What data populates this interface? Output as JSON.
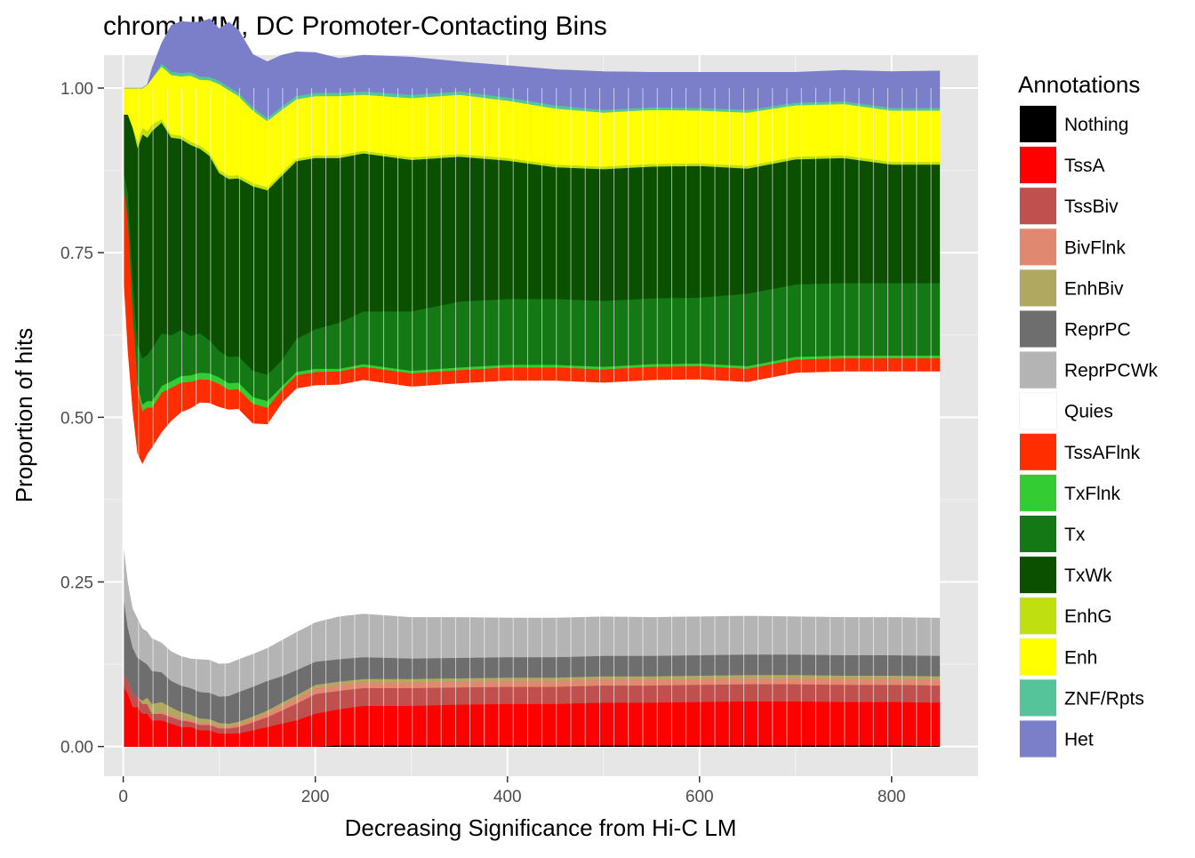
{
  "chart_data": {
    "type": "area",
    "title": "chromHMM, DC Promoter-Contacting Bins",
    "xlabel": "Decreasing Significance from Hi-C LM",
    "ylabel": "Proportion of hits",
    "xlim": [
      -20,
      890
    ],
    "ylim": [
      -0.045,
      1.05
    ],
    "x_ticks": [
      0,
      200,
      400,
      600,
      800
    ],
    "x_tick_labels": [
      "0",
      "200",
      "400",
      "600",
      "800"
    ],
    "y_ticks": [
      0,
      0.25,
      0.5,
      0.75,
      1.0
    ],
    "y_tick_labels": [
      "0.00",
      "0.25",
      "0.50",
      "0.75",
      "1.00"
    ],
    "grid": true,
    "stacking": "cumulative proportions, stacked bottom-up in series order",
    "legend": {
      "title": "Annotations",
      "placement": "right"
    },
    "x": [
      1,
      5,
      10,
      15,
      20,
      25,
      30,
      40,
      50,
      60,
      70,
      80,
      90,
      100,
      110,
      120,
      135,
      150,
      165,
      180,
      200,
      225,
      250,
      300,
      350,
      400,
      450,
      500,
      550,
      600,
      650,
      700,
      750,
      800,
      850
    ],
    "series": [
      {
        "name": "Nothing",
        "color": "#000000",
        "values": [
          0,
          0,
          0,
          0,
          0,
          0,
          0,
          0,
          0,
          0,
          0,
          0,
          0,
          0,
          0,
          0,
          0,
          0,
          0,
          0,
          0,
          0.002,
          0.002,
          0.002,
          0.002,
          0.002,
          0.002,
          0.002,
          0.002,
          0.002,
          0.002,
          0.002,
          0.002,
          0.002,
          0.001
        ]
      },
      {
        "name": "TssA",
        "color": "#FF0000",
        "values": [
          0.09,
          0.08,
          0.06,
          0.06,
          0.05,
          0.05,
          0.04,
          0.04,
          0.035,
          0.03,
          0.03,
          0.025,
          0.025,
          0.02,
          0.02,
          0.02,
          0.025,
          0.03,
          0.035,
          0.04,
          0.05,
          0.055,
          0.06,
          0.06,
          0.062,
          0.063,
          0.063,
          0.065,
          0.065,
          0.066,
          0.067,
          0.067,
          0.066,
          0.066,
          0.066
        ]
      },
      {
        "name": "TssBiv",
        "color": "#C0504D",
        "values": [
          0.02,
          0.02,
          0.02,
          0.015,
          0.015,
          0.015,
          0.01,
          0.01,
          0.01,
          0.01,
          0.008,
          0.008,
          0.008,
          0.008,
          0.008,
          0.01,
          0.012,
          0.015,
          0.02,
          0.025,
          0.03,
          0.028,
          0.027,
          0.027,
          0.026,
          0.026,
          0.026,
          0.026,
          0.026,
          0.026,
          0.026,
          0.026,
          0.026,
          0.026,
          0.026
        ]
      },
      {
        "name": "BivFlnk",
        "color": "#E08870",
        "values": [
          0,
          0,
          0,
          0,
          0,
          0,
          0,
          0.003,
          0.003,
          0.003,
          0.003,
          0.003,
          0.003,
          0.003,
          0.003,
          0.004,
          0.005,
          0.006,
          0.007,
          0.008,
          0.009,
          0.009,
          0.009,
          0.009,
          0.009,
          0.009,
          0.009,
          0.009,
          0.009,
          0.009,
          0.009,
          0.009,
          0.009,
          0.009,
          0.009
        ]
      },
      {
        "name": "EnhBiv",
        "color": "#B0A860",
        "values": [
          0,
          0,
          0,
          0,
          0.005,
          0.01,
          0.015,
          0.015,
          0.012,
          0.01,
          0.008,
          0.007,
          0.006,
          0.005,
          0.004,
          0.004,
          0.004,
          0.004,
          0.005,
          0.005,
          0.005,
          0.005,
          0.005,
          0.005,
          0.005,
          0.005,
          0.005,
          0.005,
          0.005,
          0.005,
          0.005,
          0.005,
          0.005,
          0.005,
          0.005
        ]
      },
      {
        "name": "ReprPC",
        "color": "#6E6E6E",
        "values": [
          0.11,
          0.08,
          0.07,
          0.06,
          0.06,
          0.05,
          0.05,
          0.045,
          0.04,
          0.04,
          0.04,
          0.04,
          0.04,
          0.04,
          0.042,
          0.045,
          0.045,
          0.045,
          0.04,
          0.038,
          0.035,
          0.034,
          0.033,
          0.031,
          0.031,
          0.031,
          0.031,
          0.031,
          0.031,
          0.031,
          0.031,
          0.031,
          0.031,
          0.031,
          0.031
        ]
      },
      {
        "name": "ReprPCWk",
        "color": "#B4B4B4",
        "values": [
          0.08,
          0.07,
          0.06,
          0.06,
          0.05,
          0.05,
          0.05,
          0.045,
          0.045,
          0.045,
          0.045,
          0.05,
          0.05,
          0.05,
          0.05,
          0.05,
          0.05,
          0.05,
          0.055,
          0.058,
          0.06,
          0.065,
          0.066,
          0.063,
          0.062,
          0.06,
          0.06,
          0.06,
          0.059,
          0.059,
          0.059,
          0.058,
          0.058,
          0.058,
          0.058
        ]
      },
      {
        "name": "Quies",
        "color": "#FFFFFF",
        "values": [
          0.4,
          0.35,
          0.3,
          0.25,
          0.25,
          0.27,
          0.29,
          0.32,
          0.35,
          0.37,
          0.38,
          0.39,
          0.39,
          0.39,
          0.385,
          0.38,
          0.35,
          0.34,
          0.36,
          0.37,
          0.36,
          0.352,
          0.355,
          0.35,
          0.355,
          0.36,
          0.36,
          0.355,
          0.36,
          0.36,
          0.355,
          0.37,
          0.373,
          0.373,
          0.374
        ]
      },
      {
        "name": "TssAFlnk",
        "color": "#FF2D00",
        "values": [
          0.15,
          0.2,
          0.15,
          0.1,
          0.08,
          0.07,
          0.06,
          0.06,
          0.05,
          0.045,
          0.04,
          0.035,
          0.035,
          0.035,
          0.03,
          0.03,
          0.03,
          0.025,
          0.02,
          0.02,
          0.02,
          0.02,
          0.02,
          0.02,
          0.02,
          0.02,
          0.02,
          0.02,
          0.02,
          0.02,
          0.02,
          0.02,
          0.02,
          0.02,
          0.02
        ]
      },
      {
        "name": "TxFlnk",
        "color": "#33CC33",
        "values": [
          0,
          0,
          0,
          0.005,
          0.01,
          0.01,
          0.01,
          0.01,
          0.01,
          0.01,
          0.01,
          0.01,
          0.01,
          0.01,
          0.01,
          0.01,
          0.01,
          0.01,
          0.005,
          0.005,
          0.005,
          0.004,
          0.004,
          0.004,
          0.004,
          0.004,
          0.004,
          0.004,
          0.004,
          0.004,
          0.004,
          0.004,
          0.004,
          0.004,
          0.004
        ]
      },
      {
        "name": "Tx",
        "color": "#147814",
        "values": [
          0.02,
          0.04,
          0.05,
          0.06,
          0.07,
          0.07,
          0.08,
          0.08,
          0.07,
          0.07,
          0.06,
          0.06,
          0.05,
          0.04,
          0.04,
          0.04,
          0.04,
          0.04,
          0.04,
          0.05,
          0.06,
          0.07,
          0.08,
          0.09,
          0.1,
          0.1,
          0.1,
          0.1,
          0.1,
          0.1,
          0.11,
          0.11,
          0.11,
          0.11,
          0.11
        ]
      },
      {
        "name": "TxWk",
        "color": "#0A5000",
        "values": [
          0.09,
          0.12,
          0.23,
          0.3,
          0.34,
          0.33,
          0.33,
          0.32,
          0.3,
          0.29,
          0.29,
          0.28,
          0.28,
          0.27,
          0.27,
          0.27,
          0.28,
          0.28,
          0.28,
          0.27,
          0.26,
          0.25,
          0.24,
          0.23,
          0.22,
          0.21,
          0.2,
          0.2,
          0.2,
          0.2,
          0.19,
          0.19,
          0.19,
          0.18,
          0.18
        ]
      },
      {
        "name": "EnhG",
        "color": "#BFDF10",
        "values": [
          0,
          0,
          0,
          0.01,
          0.01,
          0.01,
          0.01,
          0.005,
          0.005,
          0.005,
          0.005,
          0.005,
          0.005,
          0.005,
          0.005,
          0.005,
          0.005,
          0.005,
          0.005,
          0.004,
          0.004,
          0.004,
          0.004,
          0.004,
          0.004,
          0.004,
          0.004,
          0.004,
          0.004,
          0.004,
          0.004,
          0.004,
          0.004,
          0.004,
          0.004
        ]
      },
      {
        "name": "Enh",
        "color": "#FFFF00",
        "values": [
          0.04,
          0.04,
          0.06,
          0.08,
          0.06,
          0.07,
          0.07,
          0.08,
          0.09,
          0.09,
          0.1,
          0.1,
          0.11,
          0.13,
          0.13,
          0.12,
          0.11,
          0.1,
          0.095,
          0.09,
          0.09,
          0.09,
          0.085,
          0.09,
          0.09,
          0.087,
          0.085,
          0.082,
          0.082,
          0.08,
          0.081,
          0.078,
          0.078,
          0.078,
          0.078
        ]
      },
      {
        "name": "ZNF/Rpts",
        "color": "#55C49A",
        "values": [
          0,
          0,
          0,
          0,
          0,
          0,
          0,
          0.005,
          0.005,
          0.005,
          0.005,
          0.005,
          0.005,
          0.005,
          0.005,
          0.005,
          0.005,
          0.005,
          0.005,
          0.005,
          0.005,
          0.005,
          0.005,
          0.005,
          0.005,
          0.005,
          0.005,
          0.004,
          0.004,
          0.004,
          0.004,
          0.004,
          0.004,
          0.004,
          0.004
        ]
      },
      {
        "name": "Het",
        "color": "#7B7FCA",
        "values": [
          0,
          0,
          0,
          0,
          0,
          0,
          0.015,
          0.03,
          0.07,
          0.078,
          0.076,
          0.082,
          0.088,
          0.079,
          0.098,
          0.095,
          0.08,
          0.085,
          0.078,
          0.067,
          0.061,
          0.052,
          0.055,
          0.057,
          0.045,
          0.048,
          0.054,
          0.058,
          0.053,
          0.054,
          0.057,
          0.046,
          0.047,
          0.055,
          0.056
        ]
      }
    ]
  }
}
